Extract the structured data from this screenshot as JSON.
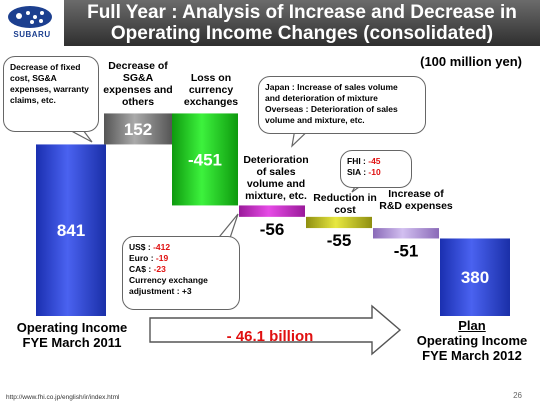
{
  "header": {
    "brand": "SUBARU",
    "title_line1": "Full Year : Analysis of Increase and Decrease in",
    "title_line2": "Operating Income Changes (consolidated)"
  },
  "unit": "(100 million yen)",
  "chart_data": {
    "type": "bar",
    "subtype": "waterfall",
    "categories": [
      "Operating Income FYE March 2011",
      "Decrease of SG&A expenses and others",
      "Loss on currency exchanges",
      "Deterioration of sales volume and mixture, etc.",
      "Reduction in cost",
      "Increase of R&D expenses",
      "Plan Operating Income FYE March 2012"
    ],
    "values": [
      841,
      152,
      -451,
      -56,
      -55,
      -51,
      380
    ],
    "value_labels": [
      "841",
      "152",
      "-451",
      "-56",
      "-55",
      "-51",
      "380"
    ],
    "colors": [
      "#2f45d8",
      "#8a8a8a",
      "#2dc82d",
      "#cc33cc",
      "#cccc22",
      "#b89ad8",
      "#2f45d8"
    ],
    "ylim": [
      0,
      1000
    ]
  },
  "labels": {
    "start_line1": "Operating Income",
    "start_line2": "FYE March 2011",
    "sga": "Decrease of SG&A expenses and others",
    "fx": "Loss on currency exchanges",
    "volume": "Deterioration of sales volume and mixture, etc.",
    "cost": "Reduction in cost",
    "rnd": "Increase of R&D expenses",
    "plan_title": "Plan",
    "plan_line1": "Operating Income",
    "plan_line2": "FYE March 2012"
  },
  "callouts": {
    "fixed_cost": "Decrease of fixed cost, SG&A expenses, warranty claims, etc.",
    "volume_line1": "Japan : Increase of sales volume",
    "volume_line2": "and deterioration of mixture",
    "volume_line3": "Overseas : Deterioration of sales",
    "volume_line4": "volume and mixture, etc.",
    "fhi_label": "FHI : ",
    "fhi_value": "-45",
    "sia_label": "SIA : ",
    "sia_value": "-10",
    "usd_label": "US$ : ",
    "usd_value": "-412",
    "euro_label": "Euro : ",
    "euro_value": "-19",
    "cad_label": "CA$ : ",
    "cad_value": "-23",
    "fx_adj_line1": "Currency exchange",
    "fx_adj_line2": "adjustment : +3"
  },
  "arrow": {
    "text": "- 46.1 billion"
  },
  "footer": {
    "url": "http://www.fhi.co.jp/english/ir/index.html",
    "page": "26"
  }
}
